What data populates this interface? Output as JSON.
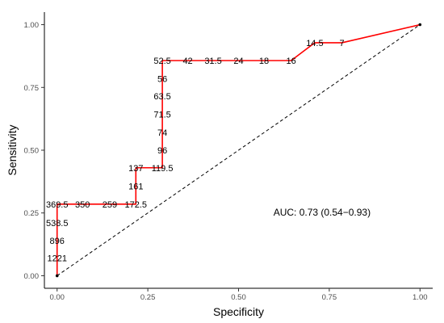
{
  "chart_data": {
    "type": "line",
    "xlabel": "Specificity",
    "ylabel": "Sensitivity",
    "xlim": [
      -0.035,
      1.035
    ],
    "ylim": [
      -0.05,
      1.05
    ],
    "x_ticks": [
      0.0,
      0.25,
      0.5,
      0.75,
      1.0
    ],
    "x_tick_labels": [
      "0.00",
      "0.25",
      "0.50",
      "0.75",
      "1.00"
    ],
    "y_ticks": [
      0.0,
      0.25,
      0.5,
      0.75,
      1.0
    ],
    "y_tick_labels": [
      "0.00",
      "0.25",
      "0.50",
      "0.75",
      "1.00"
    ],
    "grid": false,
    "annotation": "AUC: 0.73 (0.54−0.93)",
    "annotation_pos": [
      0.73,
      0.24
    ],
    "series": [
      {
        "color": "#ff0000",
        "points": [
          [
            0.0,
            0.0
          ],
          [
            0.0,
            0.07
          ],
          [
            0.0,
            0.14
          ],
          [
            0.0,
            0.21
          ],
          [
            0.0,
            0.285
          ],
          [
            0.07,
            0.285
          ],
          [
            0.145,
            0.285
          ],
          [
            0.217,
            0.285
          ],
          [
            0.217,
            0.357
          ],
          [
            0.217,
            0.43
          ],
          [
            0.29,
            0.43
          ],
          [
            0.29,
            0.5
          ],
          [
            0.29,
            0.57
          ],
          [
            0.29,
            0.643
          ],
          [
            0.29,
            0.715
          ],
          [
            0.29,
            0.857
          ],
          [
            0.36,
            0.857
          ],
          [
            0.43,
            0.857
          ],
          [
            0.5,
            0.857
          ],
          [
            0.57,
            0.857
          ],
          [
            0.645,
            0.857
          ],
          [
            0.71,
            0.928
          ],
          [
            0.785,
            0.928
          ],
          [
            1.0,
            1.0
          ]
        ]
      },
      {
        "color": "#000000",
        "dashed": true,
        "points": [
          [
            0.0,
            0.0
          ],
          [
            1.0,
            1.0
          ]
        ]
      }
    ],
    "point_labels": [
      {
        "text": "1221",
        "x": 0.0,
        "y": 0.07
      },
      {
        "text": "896",
        "x": 0.0,
        "y": 0.14
      },
      {
        "text": "538.5",
        "x": 0.0,
        "y": 0.21
      },
      {
        "text": "369.5",
        "x": 0.0,
        "y": 0.285
      },
      {
        "text": "350",
        "x": 0.07,
        "y": 0.285
      },
      {
        "text": "259",
        "x": 0.145,
        "y": 0.285
      },
      {
        "text": "172.5",
        "x": 0.217,
        "y": 0.285
      },
      {
        "text": "161",
        "x": 0.217,
        "y": 0.357
      },
      {
        "text": "137",
        "x": 0.217,
        "y": 0.43
      },
      {
        "text": "119.5",
        "x": 0.29,
        "y": 0.43
      },
      {
        "text": "96",
        "x": 0.29,
        "y": 0.5
      },
      {
        "text": "74",
        "x": 0.29,
        "y": 0.57
      },
      {
        "text": "71.5",
        "x": 0.29,
        "y": 0.643
      },
      {
        "text": "63.5",
        "x": 0.29,
        "y": 0.715
      },
      {
        "text": "56",
        "x": 0.29,
        "y": 0.785
      },
      {
        "text": "52.5",
        "x": 0.29,
        "y": 0.857
      },
      {
        "text": "42",
        "x": 0.36,
        "y": 0.857
      },
      {
        "text": "31.5",
        "x": 0.43,
        "y": 0.857
      },
      {
        "text": "24",
        "x": 0.5,
        "y": 0.857
      },
      {
        "text": "18",
        "x": 0.57,
        "y": 0.857
      },
      {
        "text": "16",
        "x": 0.645,
        "y": 0.857
      },
      {
        "text": "14.5",
        "x": 0.71,
        "y": 0.928
      },
      {
        "text": "7",
        "x": 0.785,
        "y": 0.928
      }
    ]
  }
}
